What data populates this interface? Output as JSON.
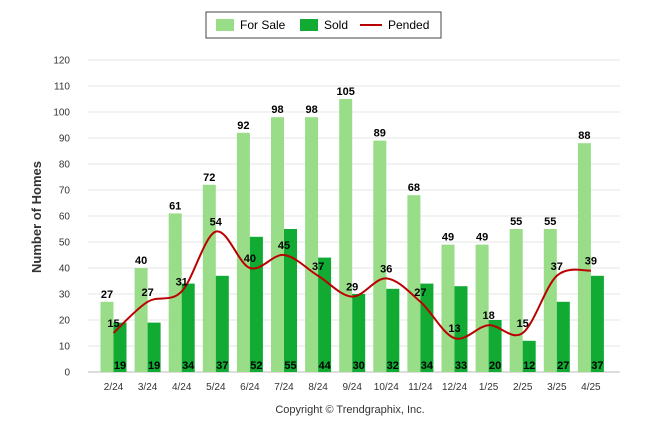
{
  "chart_data": {
    "type": "bar",
    "categories": [
      "2/24",
      "3/24",
      "4/24",
      "5/24",
      "6/24",
      "7/24",
      "8/24",
      "9/24",
      "10/24",
      "11/24",
      "12/24",
      "1/25",
      "2/25",
      "3/25",
      "4/25"
    ],
    "series": [
      {
        "name": "For Sale",
        "type": "bar",
        "color": "#99dd88",
        "values": [
          27,
          40,
          61,
          72,
          92,
          98,
          98,
          105,
          89,
          68,
          49,
          49,
          55,
          55,
          88
        ]
      },
      {
        "name": "Sold",
        "type": "bar",
        "color": "#11aa33",
        "values": [
          19,
          19,
          34,
          37,
          52,
          55,
          44,
          30,
          32,
          34,
          33,
          20,
          12,
          27,
          37
        ]
      },
      {
        "name": "Pended",
        "type": "line",
        "color": "#bb0000",
        "values": [
          15,
          27,
          31,
          54,
          40,
          45,
          37,
          29,
          36,
          27,
          13,
          18,
          15,
          37,
          39
        ]
      }
    ],
    "ylabel": "Number of Homes",
    "ylim": [
      0,
      120
    ],
    "yticks": [
      0,
      10,
      20,
      30,
      40,
      50,
      60,
      70,
      80,
      90,
      100,
      110,
      120
    ],
    "grid": true,
    "legend_position": "top-center"
  },
  "footer": "Copyright © Trendgraphix, Inc."
}
